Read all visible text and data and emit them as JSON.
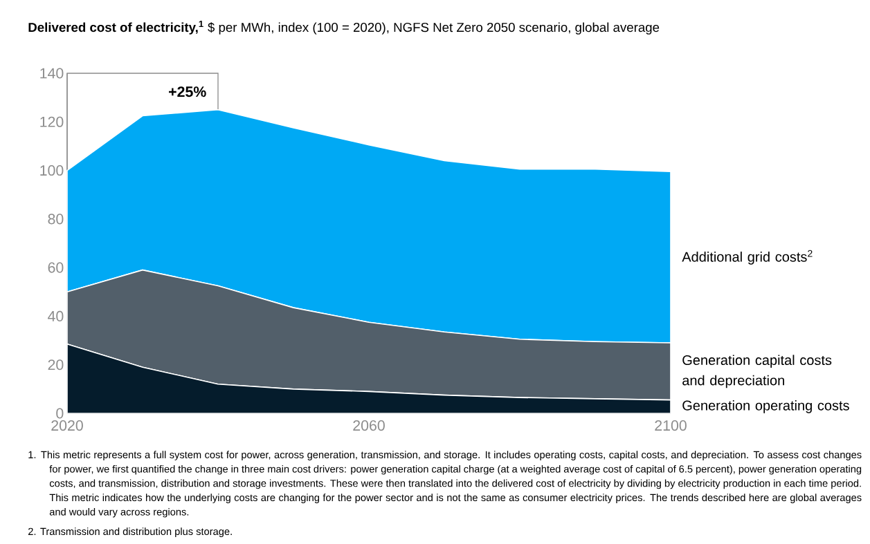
{
  "chart_data": {
    "type": "area",
    "title": "Delivered cost of electricity,$^{1}$",
    "subtitle": "$ per MWh, index (100 = 2020), NGFS Net Zero 2050 scenario, global average",
    "x": [
      2020,
      2030,
      2040,
      2050,
      2060,
      2070,
      2080,
      2090,
      2100
    ],
    "stacked": true,
    "series": [
      {
        "name": "Generation operating costs",
        "color": "#051c2c",
        "values": [
          28.5,
          19,
          12,
          10,
          9,
          7.5,
          6.5,
          6,
          5.5
        ]
      },
      {
        "name": "Generation capital costs and depreciation",
        "color": "#525f6a",
        "values": [
          21.5,
          40,
          40.5,
          33.5,
          28.5,
          26,
          24,
          23.5,
          23.5
        ]
      },
      {
        "name": "Additional grid costs$^{2}$",
        "color": "#00a9f4",
        "values": [
          50,
          63.5,
          72.5,
          74,
          73,
          70.5,
          70,
          71,
          70.5
        ]
      }
    ],
    "xlim": [
      2020,
      2100
    ],
    "ylim": [
      0,
      140
    ],
    "xticks": [
      2020,
      2060,
      2100
    ],
    "yticks": [
      0,
      20,
      40,
      60,
      80,
      100,
      120,
      140
    ],
    "annotations": [
      {
        "text": "+25%",
        "x": 2040,
        "y": 125
      },
      "1. This metric represents a full system cost for power, across generation, transmission, and storage. It includes operating costs, capital costs, and depreciation. To assess cost changes for power, we first quantified the change in three main cost drivers: power generation capital charge (at a weighted average cost of capital of 6.5 percent), power generation operating costs, and transmission, distribution and storage investments. These were then translated into the delivered cost of electricity by dividing by electricity production in each time period. This metric indicates how the underlying costs are changing for the power sector and is not the same as consumer electricity prices. The trends described here are global averages and would vary across regions.",
      "2. Transmission and distribution plus storage."
    ]
  }
}
